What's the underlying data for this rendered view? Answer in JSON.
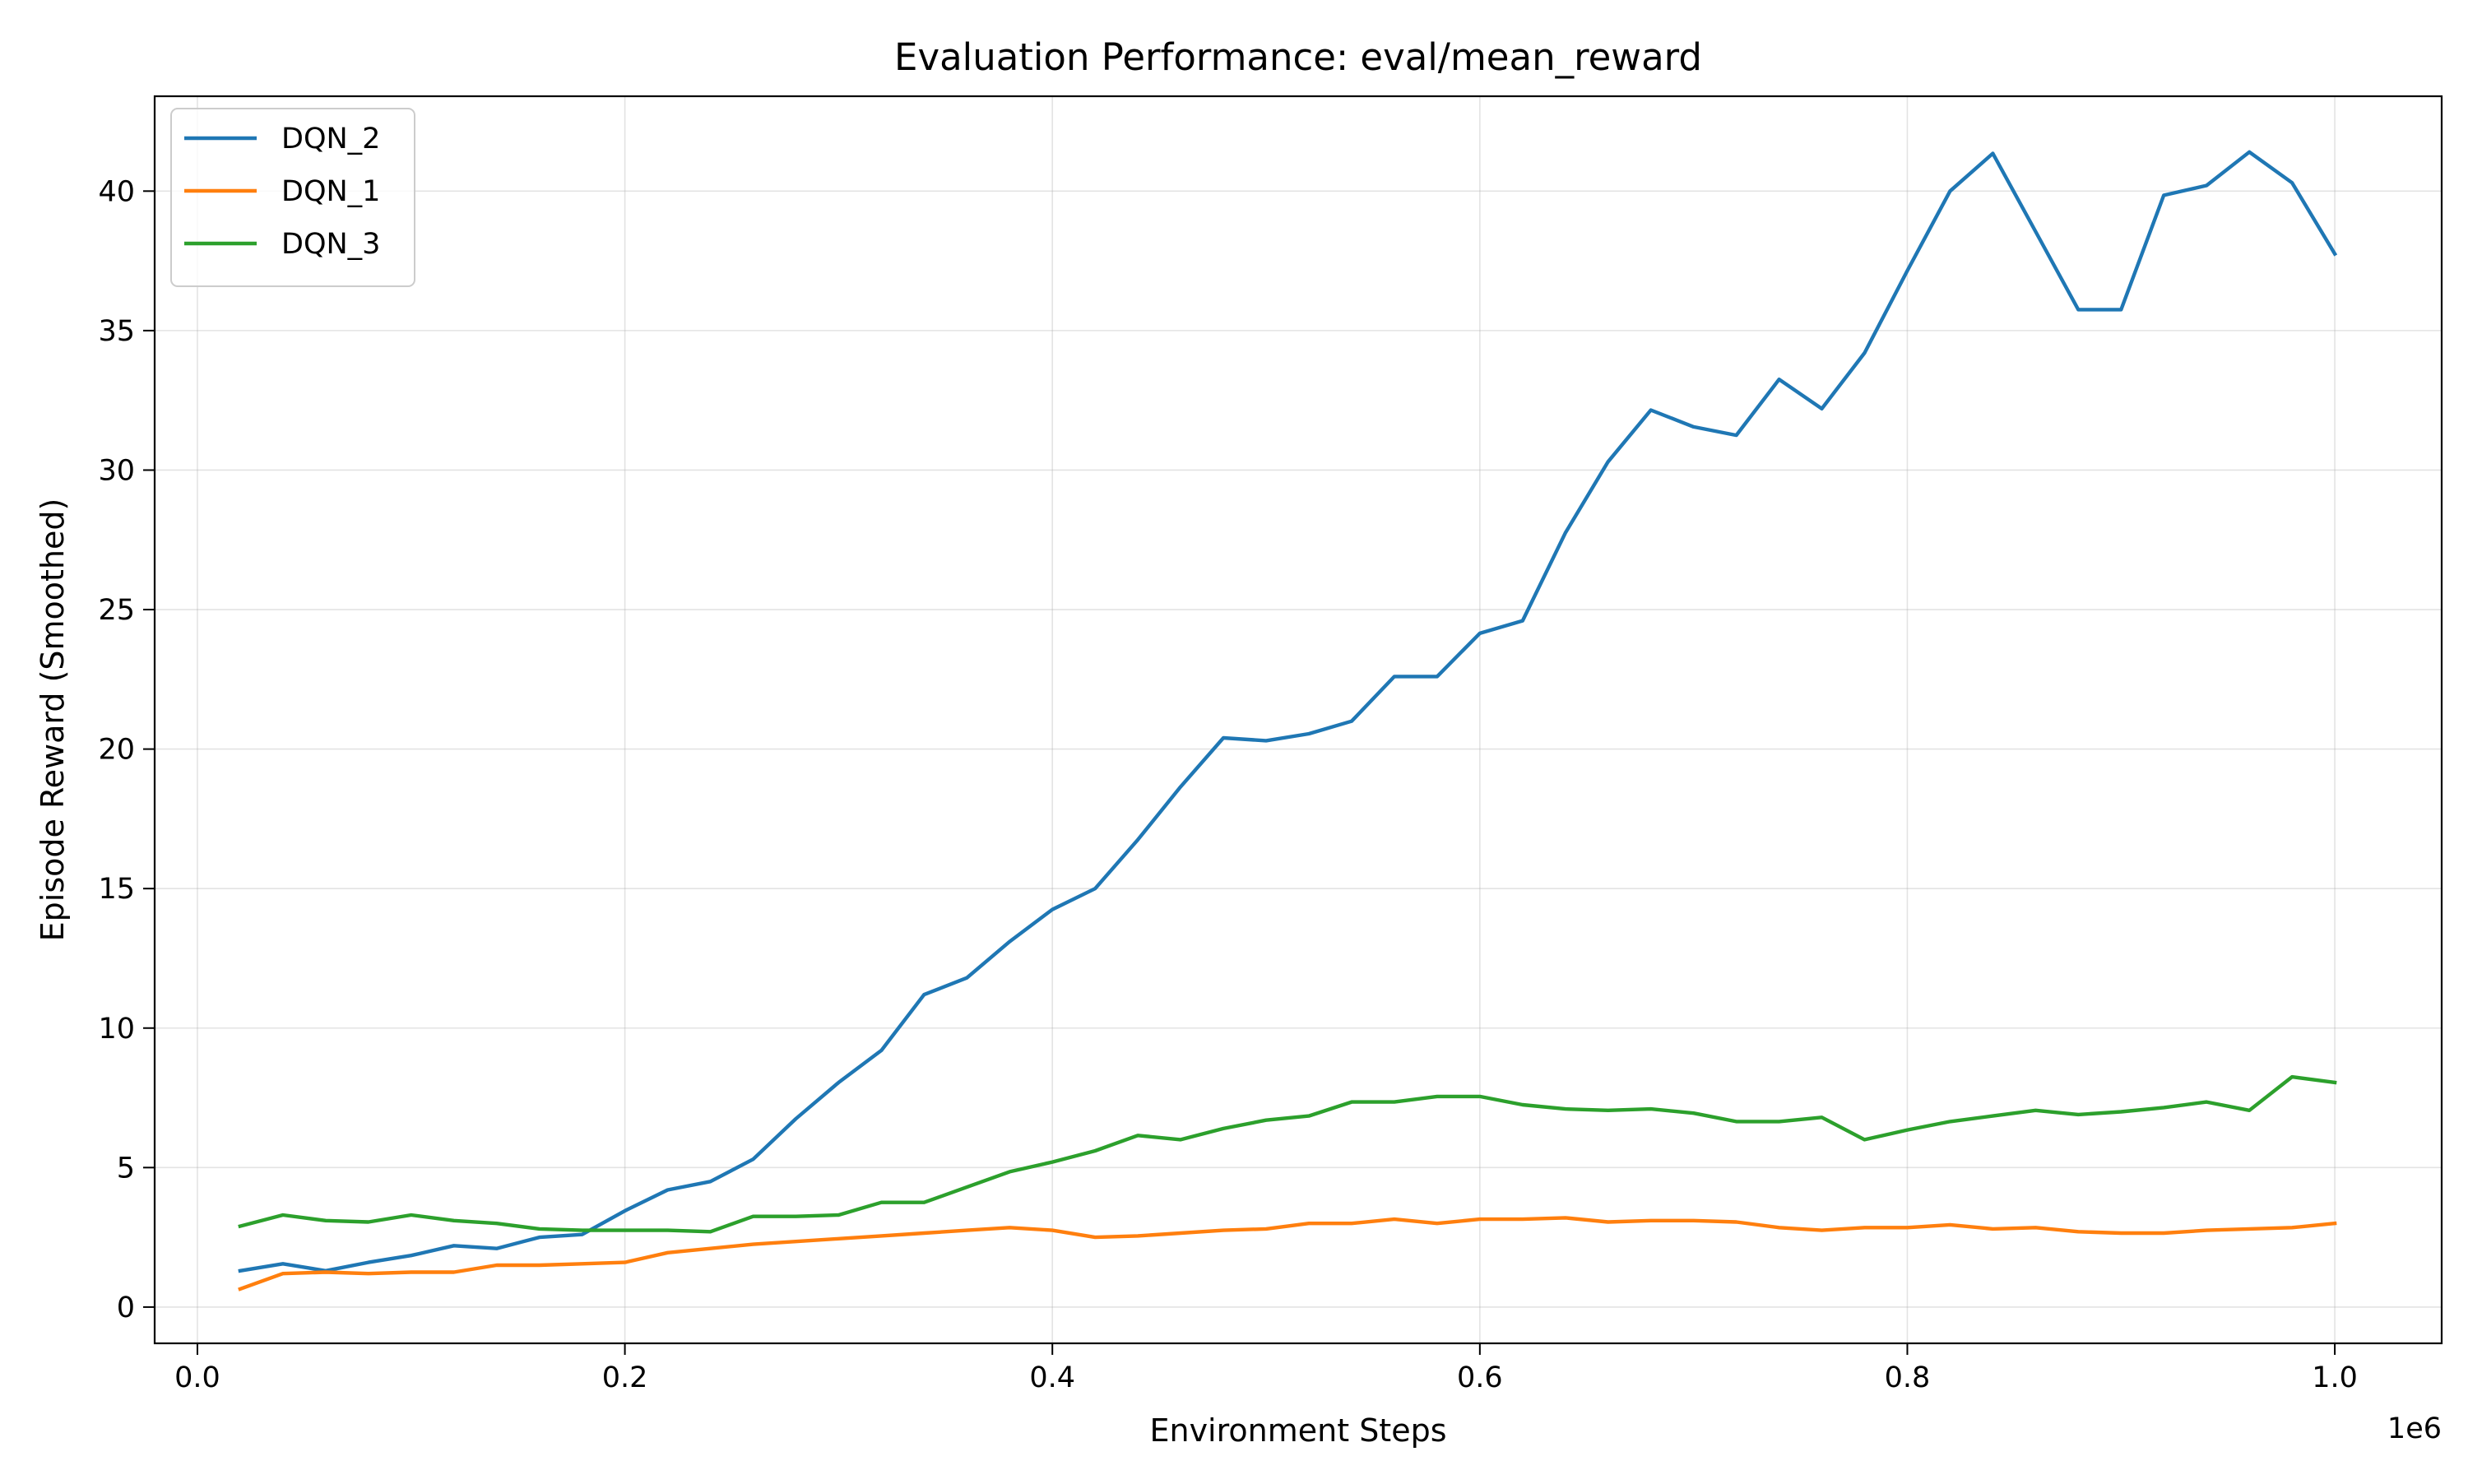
{
  "chart_data": {
    "type": "line",
    "title": "Evaluation Performance: eval/mean_reward",
    "xlabel": "Environment Steps",
    "ylabel": "Episode Reward (Smoothed)",
    "x_offset_text": "1e6",
    "xlim": [
      -20000,
      1050000
    ],
    "ylim": [
      -1.3,
      43.4
    ],
    "x_ticks": [
      0,
      200000,
      400000,
      600000,
      800000,
      1000000
    ],
    "x_tick_labels": [
      "0.0",
      "0.2",
      "0.4",
      "0.6",
      "0.8",
      "1.0"
    ],
    "y_ticks": [
      0,
      5,
      10,
      15,
      20,
      25,
      30,
      35,
      40
    ],
    "y_tick_labels": [
      "0",
      "5",
      "10",
      "15",
      "20",
      "25",
      "30",
      "35",
      "40"
    ],
    "grid": true,
    "legend_position": "top-left",
    "x": [
      20000,
      40000,
      60000,
      80000,
      100000,
      120000,
      140000,
      160000,
      180000,
      200000,
      220000,
      240000,
      260000,
      280000,
      300000,
      320000,
      340000,
      360000,
      380000,
      400000,
      420000,
      440000,
      460000,
      480000,
      500000,
      520000,
      540000,
      560000,
      580000,
      600000,
      620000,
      640000,
      660000,
      680000,
      700000,
      720000,
      740000,
      760000,
      780000,
      800000,
      820000,
      840000,
      860000,
      880000,
      900000,
      920000,
      940000,
      960000,
      980000,
      1000000
    ],
    "series": [
      {
        "name": "DQN_2",
        "color": "#1f77b4",
        "values": [
          1.3,
          1.55,
          1.3,
          1.6,
          1.85,
          2.2,
          2.1,
          2.5,
          2.6,
          3.45,
          4.2,
          4.5,
          5.3,
          6.75,
          8.05,
          9.2,
          11.2,
          11.8,
          13.1,
          14.25,
          15.0,
          16.75,
          18.65,
          20.4,
          20.3,
          20.55,
          21.0,
          22.6,
          22.6,
          24.15,
          24.6,
          27.75,
          30.3,
          32.15,
          31.55,
          31.25,
          33.25,
          32.2,
          34.2,
          37.15,
          40.0,
          41.35,
          38.55,
          35.75,
          35.75,
          39.85,
          40.2,
          41.4,
          40.3,
          37.75
        ]
      },
      {
        "name": "DQN_1",
        "color": "#ff7f0e",
        "values": [
          0.65,
          1.2,
          1.25,
          1.2,
          1.25,
          1.25,
          1.5,
          1.5,
          1.55,
          1.6,
          1.95,
          2.1,
          2.25,
          2.35,
          2.45,
          2.55,
          2.65,
          2.75,
          2.85,
          2.75,
          2.5,
          2.55,
          2.65,
          2.75,
          2.8,
          3.0,
          3.0,
          3.15,
          3.0,
          3.15,
          3.15,
          3.2,
          3.05,
          3.1,
          3.1,
          3.05,
          2.85,
          2.75,
          2.85,
          2.85,
          2.95,
          2.8,
          2.85,
          2.7,
          2.65,
          2.65,
          2.75,
          2.8,
          2.85,
          3.0
        ]
      },
      {
        "name": "DQN_3",
        "color": "#2ca02c",
        "values": [
          2.9,
          3.3,
          3.1,
          3.05,
          3.3,
          3.1,
          3.0,
          2.8,
          2.75,
          2.75,
          2.75,
          2.7,
          3.25,
          3.25,
          3.3,
          3.75,
          3.75,
          4.3,
          4.85,
          5.2,
          5.6,
          6.15,
          6.0,
          6.4,
          6.7,
          6.85,
          7.35,
          7.35,
          7.55,
          7.55,
          7.25,
          7.1,
          7.05,
          7.1,
          6.95,
          6.65,
          6.65,
          6.8,
          6.0,
          6.35,
          6.65,
          6.85,
          7.05,
          6.9,
          7.0,
          7.15,
          7.35,
          7.05,
          8.25,
          8.05
        ]
      }
    ]
  }
}
